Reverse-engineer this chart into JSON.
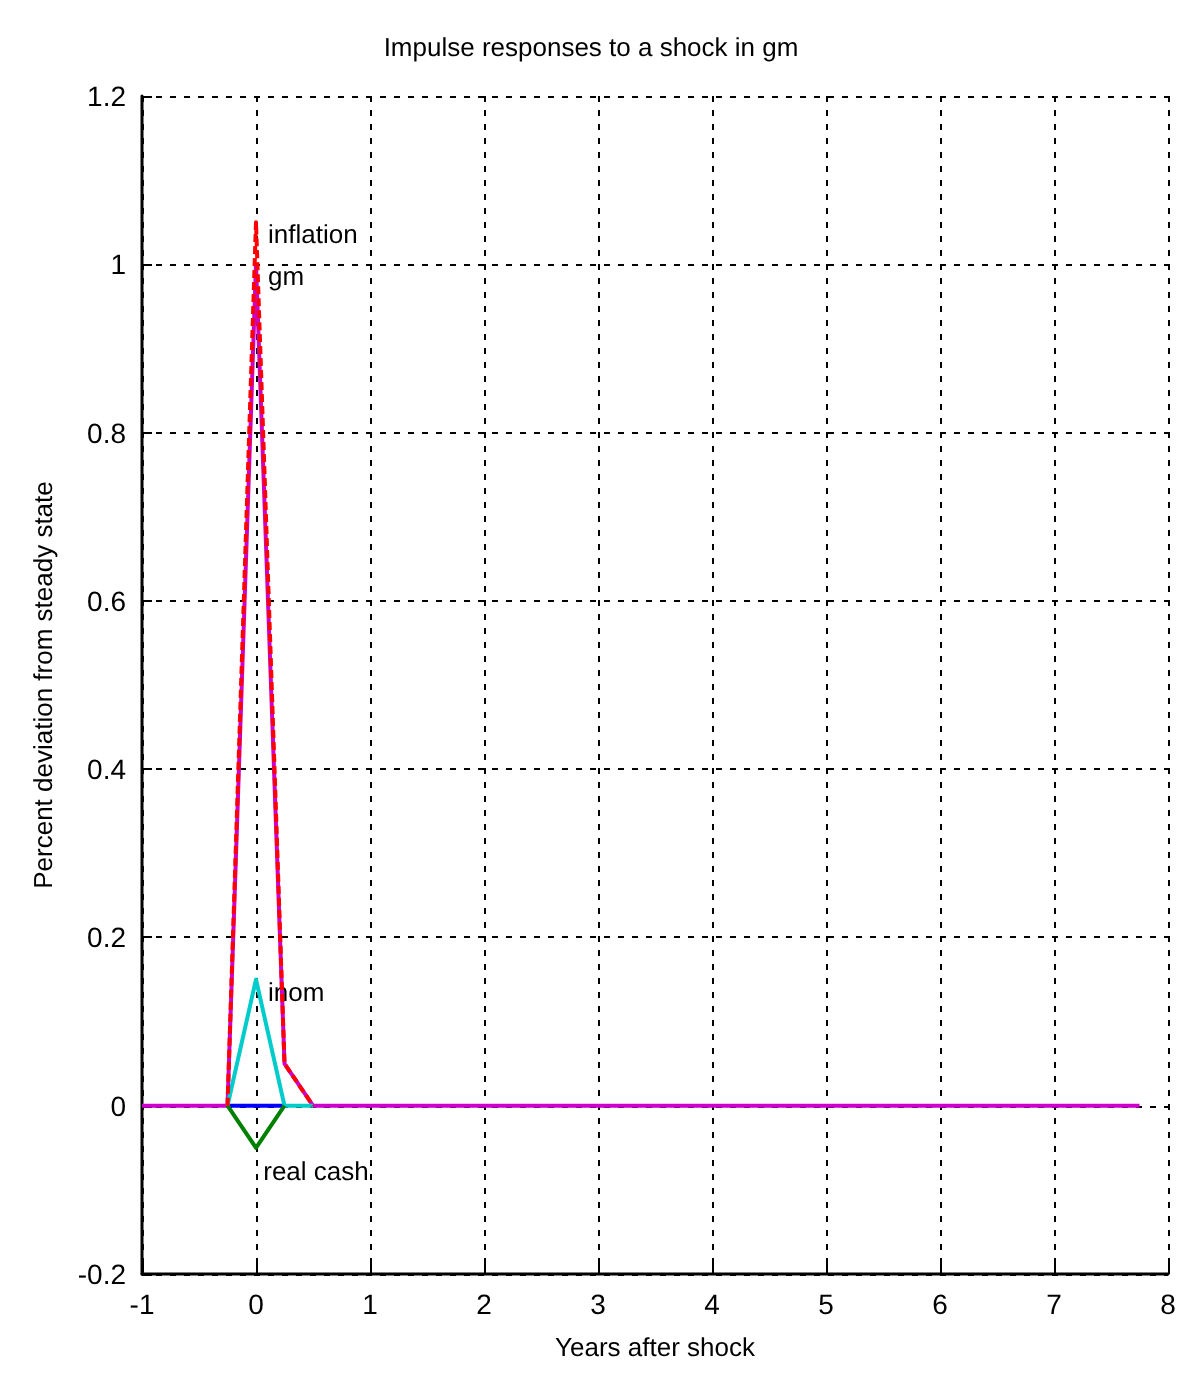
{
  "chart_data": {
    "type": "line",
    "title": "Impulse responses to a shock in gm",
    "xlabel": "Years after shock",
    "ylabel": "Percent deviation from steady state",
    "xlim": [
      -1,
      8
    ],
    "xticks": [
      -1,
      0,
      1,
      2,
      3,
      4,
      5,
      6,
      7,
      8
    ],
    "ylim": [
      -0.2,
      1.2
    ],
    "yticks": [
      -0.2,
      0,
      0.2,
      0.4,
      0.6,
      0.8,
      1,
      1.2
    ],
    "grid": true,
    "marker": "none",
    "series": [
      {
        "name": "inflation",
        "color": "#ff0000",
        "line_style": "dashed",
        "x": [
          -0.25,
          0,
          0.25,
          0.5
        ],
        "values": [
          0,
          1.05,
          0.05,
          0
        ]
      },
      {
        "name": "gm",
        "color": "#cc00cc",
        "line_style": "solid",
        "x": [
          -1,
          -0.25,
          0,
          0.25,
          0.5,
          7.75
        ],
        "values": [
          0,
          0,
          1.0,
          0.05,
          0,
          0
        ]
      },
      {
        "color": "#0000ff",
        "line_style": "solid",
        "x": [
          -0.25,
          0,
          0.25
        ],
        "values": [
          0,
          0,
          0
        ]
      },
      {
        "name": "inom",
        "color": "#00cccc",
        "line_style": "solid",
        "x": [
          -0.25,
          0,
          0.25,
          0.5
        ],
        "values": [
          0,
          0.15,
          0,
          0
        ]
      },
      {
        "name": "real cash",
        "color": "#008000",
        "line_style": "solid",
        "x": [
          -0.25,
          0,
          0.25
        ],
        "values": [
          0,
          -0.05,
          0
        ]
      }
    ]
  }
}
